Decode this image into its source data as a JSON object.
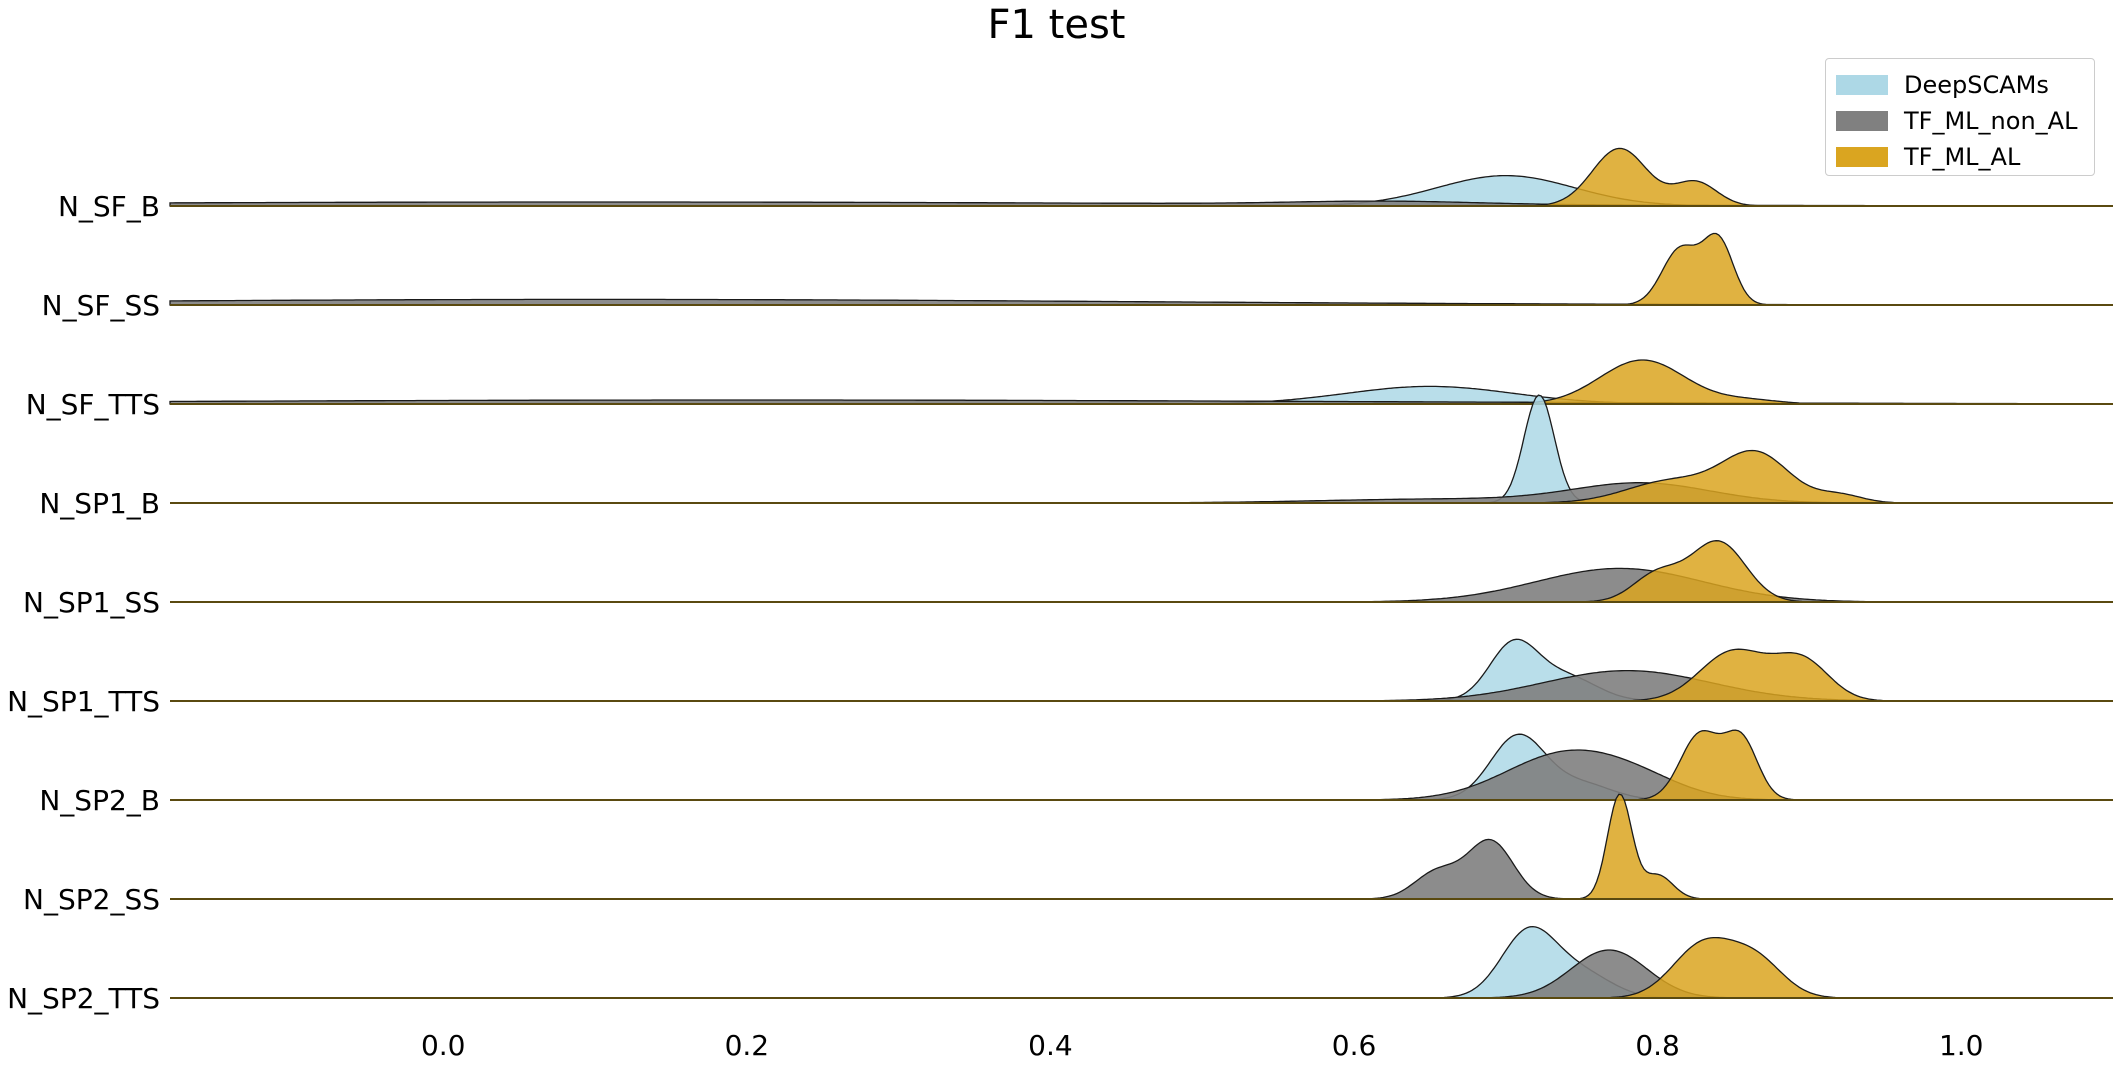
{
  "chart_data": {
    "type": "ridgeline",
    "title": "F1 test",
    "xlabel": "",
    "ylabel": "",
    "xlim": [
      -0.18,
      1.1
    ],
    "x_ticks": [
      "0.0",
      "0.2",
      "0.4",
      "0.6",
      "0.8",
      "1.0"
    ],
    "grid": false,
    "legend_position": "top-right",
    "categories": [
      "N_SF_B",
      "N_SF_SS",
      "N_SF_TTS",
      "N_SP1_B",
      "N_SP1_SS",
      "N_SP1_TTS",
      "N_SP2_B",
      "N_SP2_SS",
      "N_SP2_TTS"
    ],
    "series": [
      {
        "name": "DeepSCAMs",
        "color": "#add8e6",
        "rows": [
          {
            "category": "N_SF_B",
            "components": [
              {
                "mu": 0.7,
                "sd": 0.045,
                "h": 0.38
              }
            ]
          },
          {
            "category": "N_SF_SS",
            "components": []
          },
          {
            "category": "N_SF_TTS",
            "components": [
              {
                "mu": 0.65,
                "sd": 0.055,
                "h": 0.22
              }
            ]
          },
          {
            "category": "N_SP1_B",
            "components": [
              {
                "mu": 0.722,
                "sd": 0.01,
                "h": 1.35
              }
            ]
          },
          {
            "category": "N_SP1_SS",
            "components": []
          },
          {
            "category": "N_SP1_TTS",
            "components": [
              {
                "mu": 0.705,
                "sd": 0.016,
                "h": 0.7
              },
              {
                "mu": 0.74,
                "sd": 0.02,
                "h": 0.3
              }
            ]
          },
          {
            "category": "N_SP2_B",
            "components": [
              {
                "mu": 0.708,
                "sd": 0.018,
                "h": 0.8
              },
              {
                "mu": 0.75,
                "sd": 0.02,
                "h": 0.2
              }
            ]
          },
          {
            "category": "N_SP2_SS",
            "components": []
          },
          {
            "category": "N_SP2_TTS",
            "components": [
              {
                "mu": 0.715,
                "sd": 0.018,
                "h": 0.82
              },
              {
                "mu": 0.75,
                "sd": 0.02,
                "h": 0.3
              }
            ]
          }
        ]
      },
      {
        "name": "TF_ML_non_AL",
        "color": "#808080",
        "rows": [
          {
            "category": "N_SF_B",
            "components": [
              {
                "mu": 0.1,
                "sd": 0.4,
                "h": 0.05
              },
              {
                "mu": 0.62,
                "sd": 0.06,
                "h": 0.04
              }
            ]
          },
          {
            "category": "N_SF_SS",
            "components": [
              {
                "mu": 0.1,
                "sd": 0.35,
                "h": 0.07
              }
            ]
          },
          {
            "category": "N_SF_TTS",
            "components": [
              {
                "mu": 0.2,
                "sd": 0.4,
                "h": 0.05
              }
            ]
          },
          {
            "category": "N_SP1_B",
            "components": [
              {
                "mu": 0.66,
                "sd": 0.08,
                "h": 0.05
              },
              {
                "mu": 0.79,
                "sd": 0.045,
                "h": 0.24
              }
            ]
          },
          {
            "category": "N_SP1_SS",
            "components": [
              {
                "mu": 0.775,
                "sd": 0.055,
                "h": 0.42
              }
            ]
          },
          {
            "category": "N_SP1_TTS",
            "components": [
              {
                "mu": 0.78,
                "sd": 0.055,
                "h": 0.38
              }
            ]
          },
          {
            "category": "N_SP2_B",
            "components": [
              {
                "mu": 0.74,
                "sd": 0.04,
                "h": 0.58
              },
              {
                "mu": 0.79,
                "sd": 0.03,
                "h": 0.15
              }
            ]
          },
          {
            "category": "N_SP2_SS",
            "components": [
              {
                "mu": 0.69,
                "sd": 0.015,
                "h": 0.72
              },
              {
                "mu": 0.655,
                "sd": 0.015,
                "h": 0.34
              }
            ]
          },
          {
            "category": "N_SP2_TTS",
            "components": [
              {
                "mu": 0.768,
                "sd": 0.025,
                "h": 0.6
              }
            ]
          }
        ]
      },
      {
        "name": "TF_ML_AL",
        "color": "#daa520",
        "rows": [
          {
            "category": "N_SF_B",
            "components": [
              {
                "mu": 0.775,
                "sd": 0.018,
                "h": 0.72
              },
              {
                "mu": 0.825,
                "sd": 0.014,
                "h": 0.3
              }
            ]
          },
          {
            "category": "N_SF_SS",
            "components": [
              {
                "mu": 0.815,
                "sd": 0.012,
                "h": 0.7
              },
              {
                "mu": 0.84,
                "sd": 0.01,
                "h": 0.8
              }
            ]
          },
          {
            "category": "N_SF_TTS",
            "components": [
              {
                "mu": 0.79,
                "sd": 0.028,
                "h": 0.55
              },
              {
                "mu": 0.86,
                "sd": 0.02,
                "h": 0.05
              }
            ]
          },
          {
            "category": "N_SP1_B",
            "components": [
              {
                "mu": 0.81,
                "sd": 0.03,
                "h": 0.28
              },
              {
                "mu": 0.865,
                "sd": 0.022,
                "h": 0.6
              },
              {
                "mu": 0.92,
                "sd": 0.015,
                "h": 0.1
              }
            ]
          },
          {
            "category": "N_SP1_SS",
            "components": [
              {
                "mu": 0.8,
                "sd": 0.016,
                "h": 0.35
              },
              {
                "mu": 0.84,
                "sd": 0.018,
                "h": 0.75
              }
            ]
          },
          {
            "category": "N_SP1_TTS",
            "components": [
              {
                "mu": 0.85,
                "sd": 0.022,
                "h": 0.62
              },
              {
                "mu": 0.895,
                "sd": 0.018,
                "h": 0.5
              }
            ]
          },
          {
            "category": "N_SP2_B",
            "components": [
              {
                "mu": 0.828,
                "sd": 0.013,
                "h": 0.82
              },
              {
                "mu": 0.855,
                "sd": 0.011,
                "h": 0.75
              }
            ]
          },
          {
            "category": "N_SP2_SS",
            "components": [
              {
                "mu": 0.775,
                "sd": 0.008,
                "h": 1.3
              },
              {
                "mu": 0.8,
                "sd": 0.01,
                "h": 0.3
              }
            ]
          },
          {
            "category": "N_SP2_TTS",
            "components": [
              {
                "mu": 0.83,
                "sd": 0.02,
                "h": 0.66
              },
              {
                "mu": 0.865,
                "sd": 0.018,
                "h": 0.45
              }
            ]
          }
        ]
      }
    ]
  }
}
